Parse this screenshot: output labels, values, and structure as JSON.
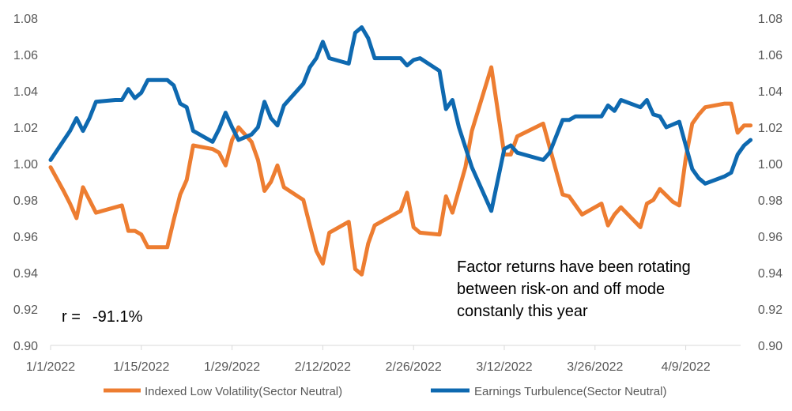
{
  "chart_data": {
    "type": "line",
    "title": "",
    "xlabel": "",
    "ylabel_left": "",
    "ylabel_right": "",
    "x_tick_labels": [
      "1/1/2022",
      "1/15/2022",
      "1/29/2022",
      "2/12/2022",
      "2/26/2022",
      "3/12/2022",
      "3/26/2022",
      "4/9/2022"
    ],
    "x_range": [
      "2022-01-01",
      "2022-04-15"
    ],
    "ylim_left": [
      0.9,
      1.08
    ],
    "ylim_right": [
      0.9,
      1.08
    ],
    "y_ticks": [
      "0.90",
      "0.92",
      "0.94",
      "0.96",
      "0.98",
      "1.00",
      "1.02",
      "1.04",
      "1.06",
      "1.08"
    ],
    "grid": false,
    "legend_position": "bottom",
    "annotation": [
      "Factor returns have been rotating",
      "between risk-on and off mode",
      "constanly this year"
    ],
    "correlation_label": "r =",
    "correlation_value": "-91.1%",
    "series": [
      {
        "name": "Indexed Low Volatility(Sector Neutral)",
        "color": "#ED7D31",
        "axis": "left",
        "points": [
          [
            "2022-01-01",
            0.998
          ],
          [
            "2022-01-03",
            0.985
          ],
          [
            "2022-01-04",
            0.978
          ],
          [
            "2022-01-05",
            0.97
          ],
          [
            "2022-01-06",
            0.987
          ],
          [
            "2022-01-07",
            0.98
          ],
          [
            "2022-01-08",
            0.973
          ],
          [
            "2022-01-11",
            0.976
          ],
          [
            "2022-01-12",
            0.977
          ],
          [
            "2022-01-13",
            0.963
          ],
          [
            "2022-01-14",
            0.963
          ],
          [
            "2022-01-15",
            0.961
          ],
          [
            "2022-01-16",
            0.954
          ],
          [
            "2022-01-19",
            0.954
          ],
          [
            "2022-01-20",
            0.969
          ],
          [
            "2022-01-21",
            0.983
          ],
          [
            "2022-01-22",
            0.991
          ],
          [
            "2022-01-23",
            1.01
          ],
          [
            "2022-01-26",
            1.008
          ],
          [
            "2022-01-27",
            1.006
          ],
          [
            "2022-01-28",
            0.999
          ],
          [
            "2022-01-29",
            1.013
          ],
          [
            "2022-01-30",
            1.02
          ],
          [
            "2022-02-01",
            1.012
          ],
          [
            "2022-02-02",
            1.002
          ],
          [
            "2022-02-03",
            0.985
          ],
          [
            "2022-02-04",
            0.99
          ],
          [
            "2022-02-05",
            0.999
          ],
          [
            "2022-02-06",
            0.987
          ],
          [
            "2022-02-09",
            0.98
          ],
          [
            "2022-02-11",
            0.952
          ],
          [
            "2022-02-12",
            0.945
          ],
          [
            "2022-02-13",
            0.962
          ],
          [
            "2022-02-16",
            0.968
          ],
          [
            "2022-02-17",
            0.942
          ],
          [
            "2022-02-18",
            0.939
          ],
          [
            "2022-02-19",
            0.956
          ],
          [
            "2022-02-20",
            0.966
          ],
          [
            "2022-02-24",
            0.974
          ],
          [
            "2022-02-25",
            0.984
          ],
          [
            "2022-02-26",
            0.965
          ],
          [
            "2022-02-27",
            0.962
          ],
          [
            "2022-03-02",
            0.961
          ],
          [
            "2022-03-03",
            0.982
          ],
          [
            "2022-03-04",
            0.973
          ],
          [
            "2022-03-06",
            0.998
          ],
          [
            "2022-03-07",
            1.018
          ],
          [
            "2022-03-10",
            1.053
          ],
          [
            "2022-03-12",
            1.005
          ],
          [
            "2022-03-13",
            1.005
          ],
          [
            "2022-03-14",
            1.015
          ],
          [
            "2022-03-18",
            1.022
          ],
          [
            "2022-03-21",
            0.983
          ],
          [
            "2022-03-22",
            0.982
          ],
          [
            "2022-03-24",
            0.972
          ],
          [
            "2022-03-27",
            0.978
          ],
          [
            "2022-03-28",
            0.966
          ],
          [
            "2022-03-29",
            0.972
          ],
          [
            "2022-03-30",
            0.976
          ],
          [
            "2022-04-02",
            0.965
          ],
          [
            "2022-04-03",
            0.978
          ],
          [
            "2022-04-04",
            0.98
          ],
          [
            "2022-04-05",
            0.986
          ],
          [
            "2022-04-07",
            0.979
          ],
          [
            "2022-04-08",
            0.977
          ],
          [
            "2022-04-09",
            1.003
          ],
          [
            "2022-04-10",
            1.022
          ],
          [
            "2022-04-11",
            1.027
          ],
          [
            "2022-04-12",
            1.031
          ],
          [
            "2022-04-15",
            1.033
          ],
          [
            "2022-04-16",
            1.033
          ],
          [
            "2022-04-17",
            1.017
          ],
          [
            "2022-04-18",
            1.021
          ],
          [
            "2022-04-19",
            1.021
          ]
        ]
      },
      {
        "name": "Earnings Turbulence(Sector Neutral)",
        "color": "#0E69B0",
        "axis": "left",
        "points": [
          [
            "2022-01-01",
            1.002
          ],
          [
            "2022-01-04",
            1.018
          ],
          [
            "2022-01-05",
            1.025
          ],
          [
            "2022-01-06",
            1.018
          ],
          [
            "2022-01-07",
            1.025
          ],
          [
            "2022-01-08",
            1.034
          ],
          [
            "2022-01-11",
            1.035
          ],
          [
            "2022-01-12",
            1.035
          ],
          [
            "2022-01-13",
            1.041
          ],
          [
            "2022-01-14",
            1.036
          ],
          [
            "2022-01-15",
            1.039
          ],
          [
            "2022-01-16",
            1.046
          ],
          [
            "2022-01-19",
            1.046
          ],
          [
            "2022-01-20",
            1.043
          ],
          [
            "2022-01-21",
            1.033
          ],
          [
            "2022-01-22",
            1.031
          ],
          [
            "2022-01-23",
            1.018
          ],
          [
            "2022-01-26",
            1.012
          ],
          [
            "2022-01-27",
            1.019
          ],
          [
            "2022-01-28",
            1.028
          ],
          [
            "2022-01-29",
            1.02
          ],
          [
            "2022-01-30",
            1.013
          ],
          [
            "2022-02-01",
            1.016
          ],
          [
            "2022-02-02",
            1.02
          ],
          [
            "2022-02-03",
            1.034
          ],
          [
            "2022-02-04",
            1.025
          ],
          [
            "2022-02-05",
            1.021
          ],
          [
            "2022-02-06",
            1.032
          ],
          [
            "2022-02-09",
            1.044
          ],
          [
            "2022-02-10",
            1.053
          ],
          [
            "2022-02-11",
            1.058
          ],
          [
            "2022-02-12",
            1.067
          ],
          [
            "2022-02-13",
            1.058
          ],
          [
            "2022-02-16",
            1.055
          ],
          [
            "2022-02-17",
            1.072
          ],
          [
            "2022-02-18",
            1.075
          ],
          [
            "2022-02-19",
            1.069
          ],
          [
            "2022-02-20",
            1.058
          ],
          [
            "2022-02-24",
            1.058
          ],
          [
            "2022-02-25",
            1.054
          ],
          [
            "2022-02-26",
            1.057
          ],
          [
            "2022-02-27",
            1.058
          ],
          [
            "2022-03-02",
            1.051
          ],
          [
            "2022-03-03",
            1.03
          ],
          [
            "2022-03-04",
            1.035
          ],
          [
            "2022-03-05",
            1.02
          ],
          [
            "2022-03-07",
            0.998
          ],
          [
            "2022-03-10",
            0.974
          ],
          [
            "2022-03-12",
            1.008
          ],
          [
            "2022-03-13",
            1.01
          ],
          [
            "2022-03-14",
            1.006
          ],
          [
            "2022-03-18",
            1.002
          ],
          [
            "2022-03-19",
            1.006
          ],
          [
            "2022-03-21",
            1.024
          ],
          [
            "2022-03-22",
            1.024
          ],
          [
            "2022-03-23",
            1.026
          ],
          [
            "2022-03-27",
            1.026
          ],
          [
            "2022-03-28",
            1.032
          ],
          [
            "2022-03-29",
            1.029
          ],
          [
            "2022-03-30",
            1.035
          ],
          [
            "2022-04-02",
            1.031
          ],
          [
            "2022-04-03",
            1.035
          ],
          [
            "2022-04-04",
            1.027
          ],
          [
            "2022-04-05",
            1.026
          ],
          [
            "2022-04-06",
            1.02
          ],
          [
            "2022-04-08",
            1.023
          ],
          [
            "2022-04-09",
            1.01
          ],
          [
            "2022-04-10",
            0.997
          ],
          [
            "2022-04-11",
            0.992
          ],
          [
            "2022-04-12",
            0.989
          ],
          [
            "2022-04-15",
            0.993
          ],
          [
            "2022-04-16",
            0.995
          ],
          [
            "2022-04-17",
            1.005
          ],
          [
            "2022-04-18",
            1.01
          ],
          [
            "2022-04-19",
            1.013
          ]
        ]
      }
    ]
  }
}
